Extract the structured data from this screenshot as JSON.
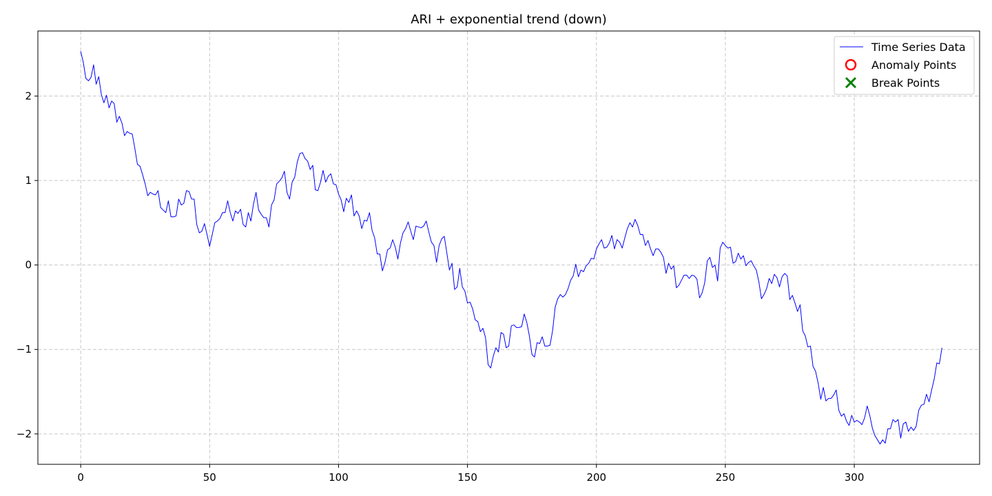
{
  "chart_data": {
    "type": "line",
    "title": "ARI + exponential trend (down)",
    "xlabel": "",
    "ylabel": "",
    "xlim": [
      -16.6,
      348.6
    ],
    "ylim": [
      -2.36,
      2.77
    ],
    "xticks": [
      0,
      50,
      100,
      150,
      200,
      250,
      300
    ],
    "yticks": [
      -2,
      -1,
      0,
      1,
      2
    ],
    "ytick_labels": [
      "−2",
      "−1",
      "0",
      "1",
      "2"
    ],
    "grid": true,
    "legend_position": "top-right",
    "legend": [
      {
        "label": "Time Series Data",
        "marker": "line",
        "color": "#0000ff"
      },
      {
        "label": "Anomaly Points",
        "marker": "circle",
        "color": "#ff0000"
      },
      {
        "label": "Break Points",
        "marker": "x",
        "color": "#008000"
      }
    ],
    "series": [
      {
        "name": "Time Series Data",
        "color": "#0000ff",
        "x_start": 0,
        "x_step": 1,
        "values": [
          2.53,
          2.4,
          2.21,
          2.18,
          2.22,
          2.37,
          2.14,
          2.23,
          2.02,
          1.92,
          2.01,
          1.86,
          1.94,
          1.91,
          1.69,
          1.76,
          1.68,
          1.53,
          1.58,
          1.56,
          1.55,
          1.38,
          1.19,
          1.17,
          1.07,
          0.96,
          0.82,
          0.86,
          0.84,
          0.83,
          0.88,
          0.68,
          0.65,
          0.62,
          0.76,
          0.57,
          0.57,
          0.58,
          0.78,
          0.71,
          0.73,
          0.88,
          0.87,
          0.78,
          0.78,
          0.48,
          0.38,
          0.4,
          0.49,
          0.36,
          0.22,
          0.36,
          0.5,
          0.52,
          0.55,
          0.62,
          0.62,
          0.76,
          0.62,
          0.52,
          0.64,
          0.61,
          0.66,
          0.48,
          0.45,
          0.62,
          0.52,
          0.72,
          0.86,
          0.65,
          0.6,
          0.56,
          0.56,
          0.45,
          0.71,
          0.77,
          0.96,
          0.99,
          1.03,
          1.11,
          0.86,
          0.78,
          0.98,
          1.04,
          1.22,
          1.32,
          1.33,
          1.26,
          1.23,
          1.13,
          1.18,
          0.89,
          0.88,
          0.98,
          1.12,
          0.98,
          1.05,
          1.08,
          0.96,
          0.95,
          0.84,
          0.77,
          0.63,
          0.79,
          0.74,
          0.83,
          0.58,
          0.64,
          0.58,
          0.43,
          0.53,
          0.52,
          0.62,
          0.41,
          0.32,
          0.13,
          0.13,
          -0.07,
          0.03,
          0.18,
          0.2,
          0.3,
          0.21,
          0.07,
          0.26,
          0.38,
          0.43,
          0.51,
          0.4,
          0.3,
          0.46,
          0.45,
          0.44,
          0.46,
          0.52,
          0.39,
          0.27,
          0.23,
          0.03,
          0.23,
          0.31,
          0.34,
          0.14,
          -0.06,
          0.02,
          -0.29,
          -0.26,
          -0.04,
          -0.26,
          -0.31,
          -0.45,
          -0.44,
          -0.52,
          -0.65,
          -0.67,
          -0.79,
          -0.75,
          -0.86,
          -1.18,
          -1.22,
          -1.08,
          -0.98,
          -1.03,
          -0.8,
          -0.82,
          -0.98,
          -0.96,
          -0.72,
          -0.71,
          -0.74,
          -0.74,
          -0.73,
          -0.58,
          -0.68,
          -0.84,
          -1.06,
          -1.09,
          -0.92,
          -0.93,
          -0.85,
          -0.96,
          -0.96,
          -0.95,
          -0.78,
          -0.5,
          -0.4,
          -0.35,
          -0.38,
          -0.35,
          -0.28,
          -0.18,
          -0.13,
          0.01,
          -0.14,
          -0.06,
          -0.08,
          -0.01,
          0.02,
          0.08,
          0.07,
          0.19,
          0.25,
          0.3,
          0.2,
          0.21,
          0.26,
          0.35,
          0.19,
          0.3,
          0.27,
          0.2,
          0.32,
          0.43,
          0.5,
          0.45,
          0.54,
          0.47,
          0.36,
          0.36,
          0.23,
          0.29,
          0.19,
          0.11,
          0.19,
          0.19,
          0.15,
          0.09,
          -0.1,
          0.02,
          -0.05,
          -0.01,
          -0.27,
          -0.24,
          -0.18,
          -0.12,
          -0.12,
          -0.16,
          -0.12,
          -0.13,
          -0.17,
          -0.39,
          -0.33,
          -0.21,
          0.05,
          0.09,
          -0.03,
          0.0,
          -0.19,
          0.2,
          0.27,
          0.23,
          0.2,
          0.21,
          0.02,
          0.04,
          0.14,
          0.07,
          0.11,
          -0.01,
          0.03,
          0.05,
          -0.01,
          -0.06,
          -0.2,
          -0.4,
          -0.35,
          -0.28,
          -0.16,
          -0.22,
          -0.11,
          -0.15,
          -0.26,
          -0.14,
          -0.1,
          -0.13,
          -0.41,
          -0.36,
          -0.45,
          -0.55,
          -0.47,
          -0.78,
          -0.84,
          -0.97,
          -0.96,
          -1.2,
          -1.26,
          -1.4,
          -1.59,
          -1.45,
          -1.61,
          -1.58,
          -1.58,
          -1.54,
          -1.48,
          -1.72,
          -1.79,
          -1.76,
          -1.85,
          -1.9,
          -1.78,
          -1.86,
          -1.84,
          -1.86,
          -1.89,
          -1.81,
          -1.67,
          -1.78,
          -1.93,
          -2.02,
          -2.07,
          -2.12,
          -2.07,
          -2.11,
          -1.94,
          -1.94,
          -1.83,
          -1.86,
          -1.83,
          -2.05,
          -1.88,
          -1.86,
          -1.97,
          -1.92,
          -1.96,
          -1.91,
          -1.72,
          -1.66,
          -1.65,
          -1.53,
          -1.62,
          -1.48,
          -1.35,
          -1.16,
          -1.17,
          -0.98
        ]
      }
    ]
  }
}
